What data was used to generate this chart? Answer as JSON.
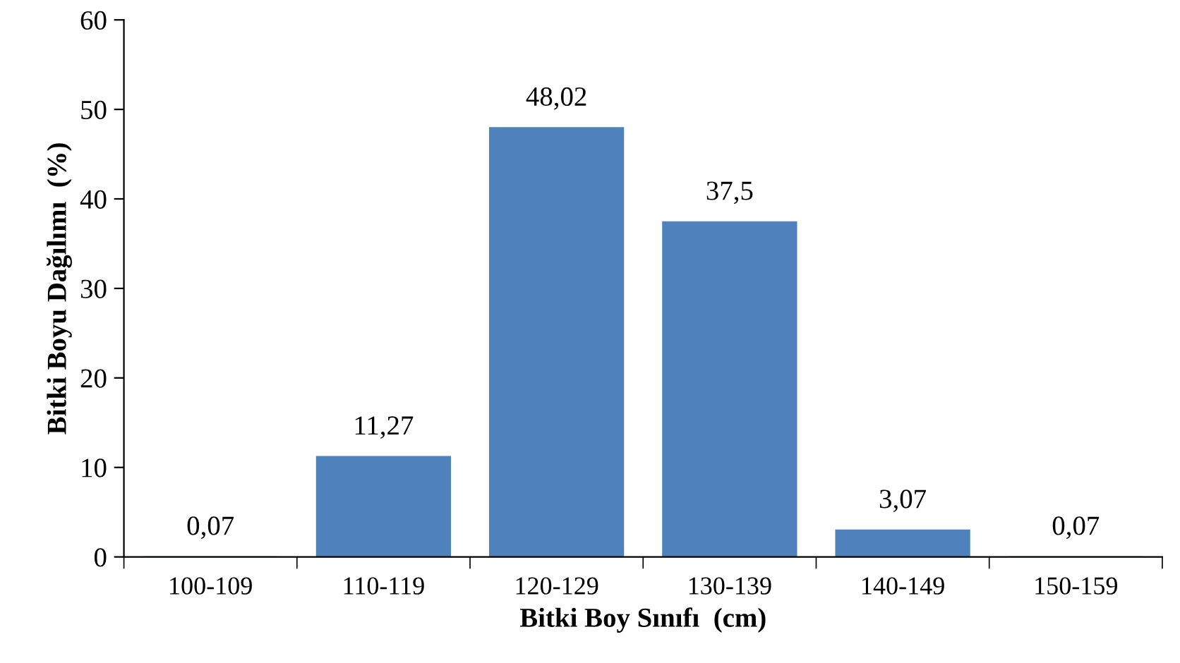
{
  "chart_data": {
    "type": "bar",
    "xlabel": "Bitki Boy Sınıfı  (cm)",
    "ylabel": "Bitki Boyu Dağılımı  (%)",
    "categories": [
      "100-109",
      "110-119",
      "120-129",
      "130-139",
      "140-149",
      "150-159"
    ],
    "values": [
      0.07,
      11.27,
      48.02,
      37.5,
      3.07,
      0.07
    ],
    "value_labels": [
      "0,07",
      "11,27",
      "48,02",
      "37,5",
      "3,07",
      "0,07"
    ],
    "color": "#4f81bd",
    "ylim": [
      0,
      60
    ],
    "yticks": [
      0,
      10,
      20,
      30,
      40,
      50,
      60
    ],
    "grid": false,
    "legend": false
  }
}
